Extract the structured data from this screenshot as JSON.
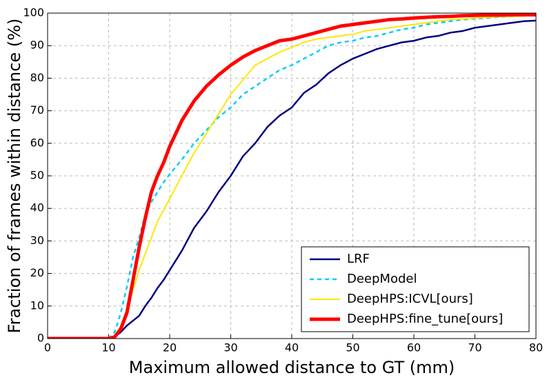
{
  "chart_data": {
    "type": "line",
    "xlabel": "Maximum allowed distance to GT (mm)",
    "ylabel": "Fraction of frames within distance (%)",
    "x": [
      0,
      9,
      10,
      11,
      12,
      13,
      14,
      15,
      16,
      17,
      18,
      19,
      20,
      22,
      24,
      26,
      28,
      30,
      32,
      34,
      36,
      38,
      40,
      42,
      44,
      46,
      48,
      50,
      52,
      54,
      56,
      58,
      60,
      62,
      64,
      66,
      68,
      70,
      72,
      74,
      76,
      78,
      80
    ],
    "series": [
      {
        "name": "LRF",
        "color": "#000080",
        "values": [
          0,
          0,
          0,
          0.5,
          2,
          4,
          5.5,
          7,
          10,
          12.5,
          15.5,
          18,
          21,
          27,
          34,
          39,
          45,
          50,
          56,
          60,
          65,
          68.5,
          71,
          75.5,
          78,
          81.5,
          84,
          86,
          87.5,
          89,
          90,
          91,
          91.5,
          92.5,
          93,
          94,
          94.5,
          95.5,
          96,
          96.5,
          97,
          97.5,
          97.7
        ]
      },
      {
        "name": "DeepModel",
        "color": "#00ccff",
        "values": [
          0,
          0,
          0,
          2,
          8,
          16,
          25,
          31,
          38,
          42,
          45,
          48,
          50.5,
          55,
          60,
          64,
          68,
          71,
          75,
          77.5,
          80,
          82.5,
          84,
          86,
          88,
          90,
          91,
          91.5,
          92.5,
          93,
          94,
          95,
          95.5,
          96.5,
          97,
          97.5,
          98,
          98.3,
          98.5,
          98.8,
          99,
          99.2,
          99.3
        ]
      },
      {
        "name": "DeepHPS:ICVL[ours]",
        "color": "#ffe600",
        "values": [
          0,
          0,
          0,
          0.5,
          4,
          9,
          15,
          21,
          26,
          31,
          36,
          39.5,
          43,
          50,
          57,
          63,
          69,
          75,
          79.5,
          84,
          86,
          88,
          89.5,
          91,
          92,
          92.5,
          93,
          93.5,
          94.5,
          95,
          95.5,
          96,
          96.5,
          97,
          97.5,
          98,
          98.2,
          98.5,
          98.7,
          98.9,
          99,
          99.1,
          99.3
        ]
      },
      {
        "name": "DeepHPS:fine_tune[ours]",
        "color": "#ff0000",
        "values": [
          0,
          0,
          0,
          0.5,
          3,
          8,
          18,
          28,
          37,
          45,
          50,
          54,
          59,
          67,
          73,
          77.5,
          81,
          84,
          86.5,
          88.5,
          90,
          91.5,
          92,
          93,
          94,
          95,
          96,
          96.5,
          97,
          97.5,
          98,
          98.2,
          98.5,
          98.7,
          98.9,
          99,
          99.2,
          99.3,
          99.4,
          99.4,
          99.5,
          99.5,
          99.5
        ]
      }
    ],
    "xlim": [
      0,
      80
    ],
    "xticks": [
      0,
      10,
      20,
      30,
      40,
      50,
      60,
      70,
      80
    ],
    "ylim": [
      0,
      100
    ],
    "yticks": [
      0,
      10,
      20,
      30,
      40,
      50,
      60,
      70,
      80,
      90,
      100
    ],
    "grid": true,
    "legend": "lower right"
  }
}
